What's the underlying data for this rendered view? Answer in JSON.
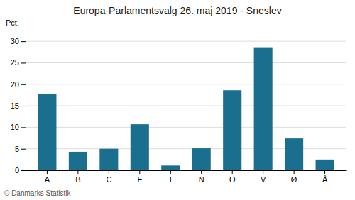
{
  "chart_data": {
    "type": "bar",
    "title": "Europa-Parlamentsvalg 26. maj 2019 - Sneslev",
    "ylabel": "Pct.",
    "annotations": [
      "© Danmarks Statistik"
    ],
    "categories": [
      "A",
      "B",
      "C",
      "F",
      "I",
      "N",
      "O",
      "V",
      "Ø",
      "Å"
    ],
    "values": [
      17.8,
      4.3,
      5.0,
      10.7,
      1.1,
      5.1,
      18.6,
      28.6,
      7.4,
      2.5
    ],
    "color": "#1a6e8e",
    "ylim": [
      0,
      32
    ],
    "yticks": [
      0,
      5,
      10,
      15,
      20,
      25,
      30
    ],
    "grid": true
  }
}
